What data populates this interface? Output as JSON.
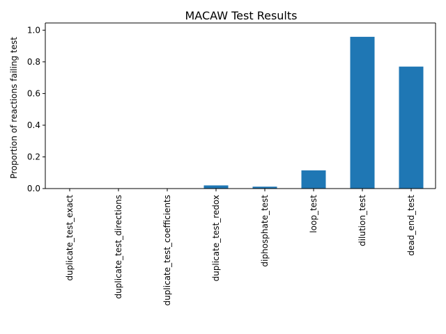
{
  "chart_data": {
    "type": "bar",
    "title": "MACAW Test Results",
    "xlabel": "",
    "ylabel": "Proportion of reactions failing test",
    "categories": [
      "duplicate_test_exact",
      "duplicate_test_directions",
      "duplicate_test_coefficients",
      "duplicate_test_redox",
      "diphosphate_test",
      "loop_test",
      "dilution_test",
      "dead_end_test"
    ],
    "values": [
      0.0,
      0.0,
      0.0,
      0.02,
      0.012,
      0.115,
      0.958,
      0.77
    ],
    "ylim": [
      0,
      1.0
    ],
    "yticks": [
      "0.0",
      "0.2",
      "0.4",
      "0.6",
      "0.8",
      "1.0"
    ],
    "ytick_values": [
      0,
      0.2,
      0.4,
      0.6,
      0.8,
      1.0
    ],
    "grid": false,
    "legend": "none",
    "colors": {
      "bar": "#1f77b4",
      "axis": "#000000",
      "background": "#ffffff"
    }
  }
}
